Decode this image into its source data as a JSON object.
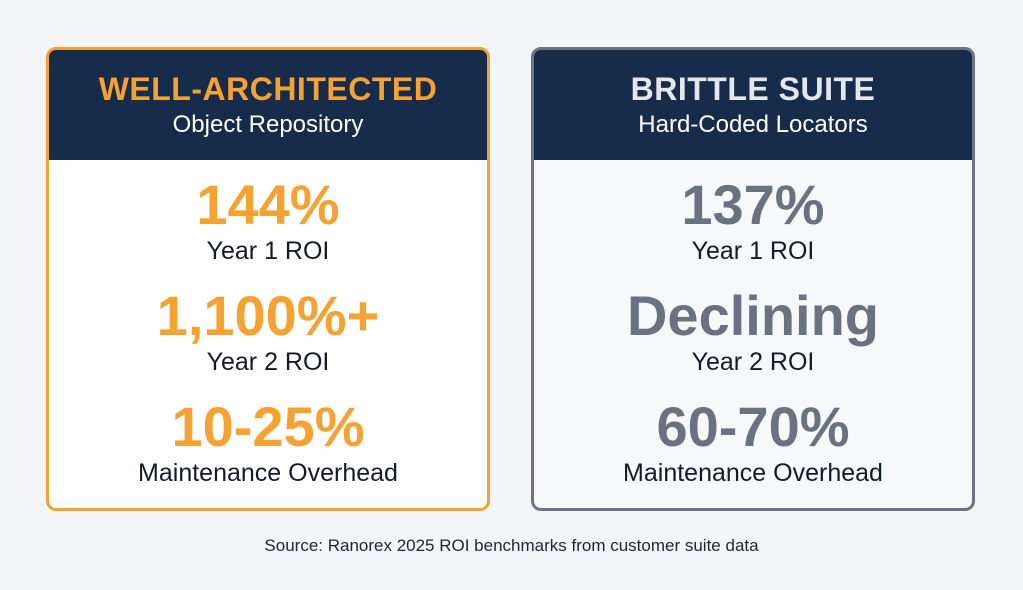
{
  "left_card": {
    "title": "WELL-ARCHITECTED",
    "subtitle": "Object Repository",
    "metrics": [
      {
        "value": "144%",
        "label": "Year 1 ROI"
      },
      {
        "value": "1,100%+",
        "label": "Year 2 ROI"
      },
      {
        "value": "10-25%",
        "label": "Maintenance Overhead"
      }
    ]
  },
  "right_card": {
    "title": "BRITTLE SUITE",
    "subtitle": "Hard-Coded Locators",
    "metrics": [
      {
        "value": "137%",
        "label": "Year 1 ROI"
      },
      {
        "value": "Declining",
        "label": "Year 2 ROI"
      },
      {
        "value": "60-70%",
        "label": "Maintenance Overhead"
      }
    ]
  },
  "source": "Source: Ranorex 2025 ROI benchmarks from customer suite data",
  "colors": {
    "accent_orange": "#f5a233",
    "header_navy": "#172c4a",
    "muted_gray": "#6a7282"
  }
}
